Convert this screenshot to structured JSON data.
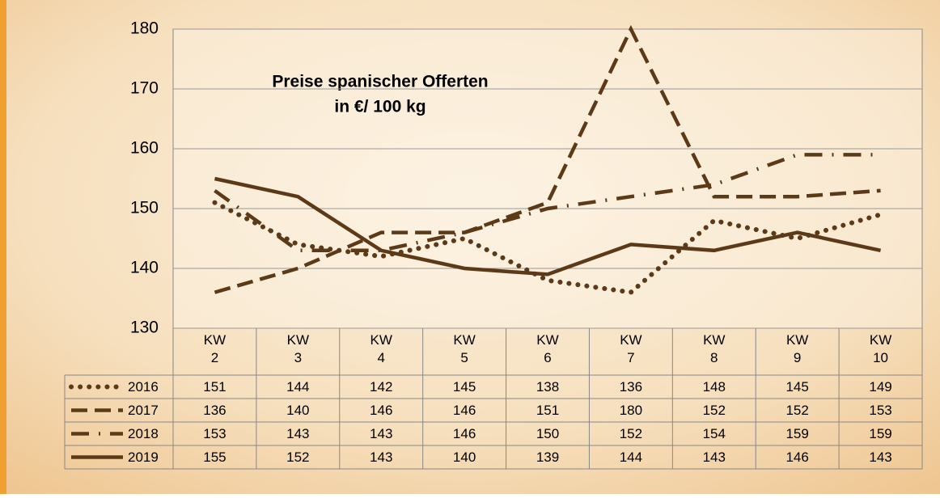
{
  "chart_data": {
    "type": "line",
    "title": "Preise spanischer Offerten",
    "subtitle": "in €/ 100 kg",
    "categories": [
      "KW 2",
      "KW 3",
      "KW 4",
      "KW 5",
      "KW 6",
      "KW 7",
      "KW 8",
      "KW 9",
      "KW 10"
    ],
    "series": [
      {
        "name": "2016",
        "color": "#5c3a17",
        "style": "dotted",
        "values": [
          151,
          144,
          142,
          145,
          138,
          136,
          148,
          145,
          149
        ]
      },
      {
        "name": "2017",
        "color": "#5c3a17",
        "style": "dashed",
        "values": [
          136,
          140,
          146,
          146,
          151,
          180,
          152,
          152,
          153
        ]
      },
      {
        "name": "2018",
        "color": "#5c3a17",
        "style": "dashdot",
        "values": [
          153,
          143,
          143,
          146,
          150,
          152,
          154,
          159,
          159
        ]
      },
      {
        "name": "2019",
        "color": "#5c3a17",
        "style": "solid",
        "values": [
          155,
          152,
          143,
          140,
          139,
          144,
          143,
          146,
          143
        ]
      }
    ],
    "ylim": [
      130,
      180
    ],
    "yticks": [
      130,
      140,
      150,
      160,
      170,
      180
    ],
    "grid": true
  }
}
